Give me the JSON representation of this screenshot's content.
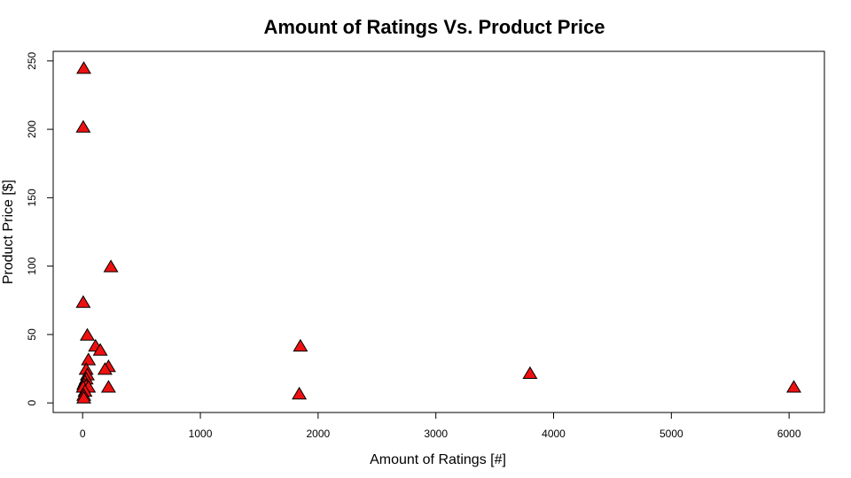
{
  "chart_data": {
    "type": "scatter",
    "title": "Amount of Ratings Vs. Product Price",
    "xlabel": "Amount of Ratings [#]",
    "ylabel": "Product Price [$]",
    "xlim": [
      -250,
      6300
    ],
    "ylim": [
      -7,
      257
    ],
    "xticks": [
      0,
      1000,
      2000,
      3000,
      4000,
      5000,
      6000
    ],
    "yticks": [
      0,
      50,
      100,
      150,
      200,
      250
    ],
    "marker": "filled-triangle",
    "marker_color": "#ee1111",
    "grid": false,
    "series": [
      {
        "points": [
          {
            "x": 10,
            "y": 244
          },
          {
            "x": 5,
            "y": 201
          },
          {
            "x": 240,
            "y": 99
          },
          {
            "x": 5,
            "y": 73
          },
          {
            "x": 40,
            "y": 49
          },
          {
            "x": 110,
            "y": 41
          },
          {
            "x": 150,
            "y": 38
          },
          {
            "x": 1850,
            "y": 41
          },
          {
            "x": 50,
            "y": 31
          },
          {
            "x": 220,
            "y": 26
          },
          {
            "x": 190,
            "y": 24
          },
          {
            "x": 30,
            "y": 24
          },
          {
            "x": 40,
            "y": 20
          },
          {
            "x": 30,
            "y": 17
          },
          {
            "x": 20,
            "y": 15
          },
          {
            "x": 10,
            "y": 13
          },
          {
            "x": 30,
            "y": 12
          },
          {
            "x": 5,
            "y": 11
          },
          {
            "x": 50,
            "y": 11
          },
          {
            "x": 220,
            "y": 11
          },
          {
            "x": 20,
            "y": 8
          },
          {
            "x": 10,
            "y": 5
          },
          {
            "x": 10,
            "y": 3
          },
          {
            "x": 1840,
            "y": 6
          },
          {
            "x": 3800,
            "y": 21
          },
          {
            "x": 6040,
            "y": 11
          }
        ]
      }
    ]
  }
}
